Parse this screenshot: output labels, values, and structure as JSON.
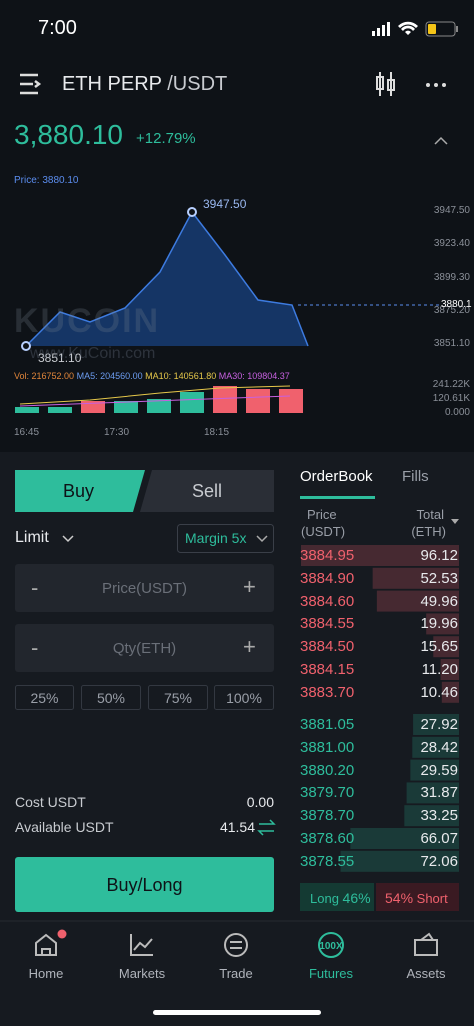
{
  "status": {
    "time": "7:00"
  },
  "header": {
    "title": "ETH PERP",
    "quote": "/USDT"
  },
  "ticker": {
    "price": "3,880.10",
    "change": "+12.79%"
  },
  "chart": {
    "price_label": "Price: 3880.10",
    "high_label": "3947.50",
    "low_label": "3851.10",
    "price_axis": [
      "3947.50",
      "3923.40",
      "3899.30",
      "3875.20",
      "3851.10"
    ],
    "current": "3880.1",
    "watermark": "KUCOIN",
    "watermark_url": "www.KuCoin.com",
    "indicators": {
      "vol": "Vol: 216752.00",
      "ma5": "MA5: 204560.00",
      "ma10": "MA10: 140561.80",
      "ma30": "MA30: 109804.37"
    },
    "vol_axis": [
      "241.22K",
      "120.61K",
      "0.000"
    ],
    "times": [
      "16:45",
      "17:30",
      "18:15"
    ]
  },
  "trade": {
    "buy_tab": "Buy",
    "sell_tab": "Sell",
    "order_type": "Limit",
    "margin": "Margin 5x",
    "price_placeholder": "Price(USDT)",
    "qty_placeholder": "Qty(ETH)",
    "minus": "-",
    "plus": "+",
    "percents": [
      "25%",
      "50%",
      "75%",
      "100%"
    ],
    "cost_label": "Cost USDT",
    "cost_value": "0.00",
    "available_label": "Available USDT",
    "available_value": "41.54",
    "submit": "Buy/Long"
  },
  "orderbook": {
    "tabs": [
      "OrderBook",
      "Fills"
    ],
    "price_header": [
      "Price",
      "(USDT)"
    ],
    "total_header": [
      "Total",
      "(ETH)"
    ],
    "asks": [
      [
        "3884.95",
        "96.12"
      ],
      [
        "3884.90",
        "52.53"
      ],
      [
        "3884.60",
        "49.96"
      ],
      [
        "3884.55",
        "19.96"
      ],
      [
        "3884.50",
        "15.65"
      ],
      [
        "3884.15",
        "11.20"
      ],
      [
        "3883.70",
        "10.46"
      ]
    ],
    "bids": [
      [
        "3881.05",
        "27.92"
      ],
      [
        "3881.00",
        "28.42"
      ],
      [
        "3880.20",
        "29.59"
      ],
      [
        "3879.70",
        "31.87"
      ],
      [
        "3878.70",
        "33.25"
      ],
      [
        "3878.60",
        "66.07"
      ],
      [
        "3878.55",
        "72.06"
      ]
    ],
    "long_label": "Long",
    "long_pct": "46%",
    "short_pct": "54%",
    "short_label": "Short"
  },
  "nav": [
    "Home",
    "Markets",
    "Trade",
    "Futures",
    "Assets"
  ]
}
